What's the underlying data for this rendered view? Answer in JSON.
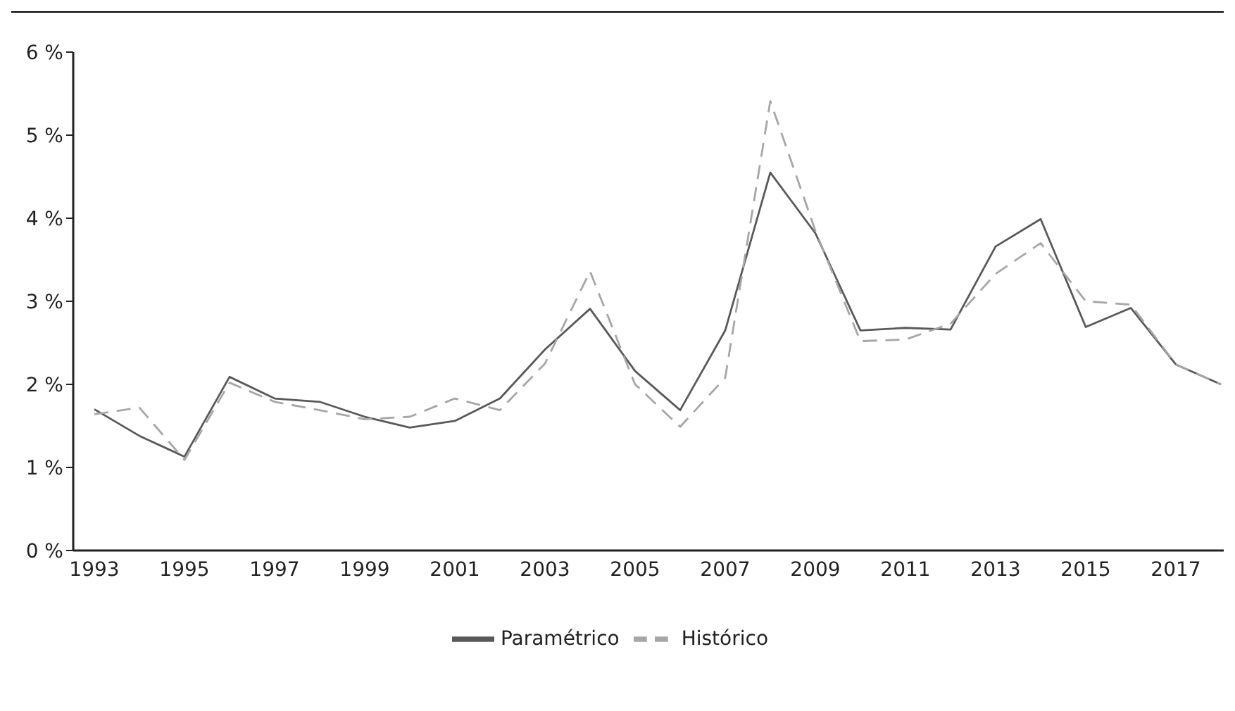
{
  "chart_data": {
    "type": "line",
    "categories": [
      "1993",
      null,
      "1995",
      null,
      "1997",
      null,
      "1999",
      null,
      "2001",
      null,
      "2003",
      null,
      "2005",
      null,
      "2007",
      null,
      "2009",
      null,
      "2011",
      null,
      "2013",
      null,
      "2015",
      null,
      "2017",
      null
    ],
    "series": [
      {
        "name": "Paramétrico",
        "color": "#595959",
        "line_style": "solid",
        "values": [
          1.7,
          1.38,
          1.13,
          2.09,
          1.83,
          1.79,
          1.61,
          1.48,
          1.56,
          1.83,
          2.42,
          2.91,
          2.16,
          1.69,
          2.65,
          4.55,
          3.82,
          2.65,
          2.68,
          2.66,
          3.66,
          3.99,
          2.69,
          2.92,
          2.24,
          2.0
        ]
      },
      {
        "name": "Histórico",
        "color": "#a6a6a6",
        "line_style": "dashed",
        "values": [
          1.64,
          1.72,
          1.09,
          2.02,
          1.79,
          1.69,
          1.58,
          1.61,
          1.83,
          1.69,
          2.25,
          3.36,
          2.0,
          1.49,
          2.08,
          5.41,
          3.85,
          2.52,
          2.54,
          2.73,
          3.33,
          3.7,
          3.0,
          2.96,
          2.24,
          2.0
        ]
      }
    ],
    "ylim": [
      0,
      6
    ],
    "yticks": [
      {
        "value": 0,
        "label": "0 %"
      },
      {
        "value": 1,
        "label": "1 %"
      },
      {
        "value": 2,
        "label": "2 %"
      },
      {
        "value": 3,
        "label": "3 %"
      },
      {
        "value": 4,
        "label": "4 %"
      },
      {
        "value": 5,
        "label": "5 %"
      },
      {
        "value": 6,
        "label": "6 %"
      }
    ],
    "grid": false,
    "legend": "bottom",
    "marker": "none"
  }
}
